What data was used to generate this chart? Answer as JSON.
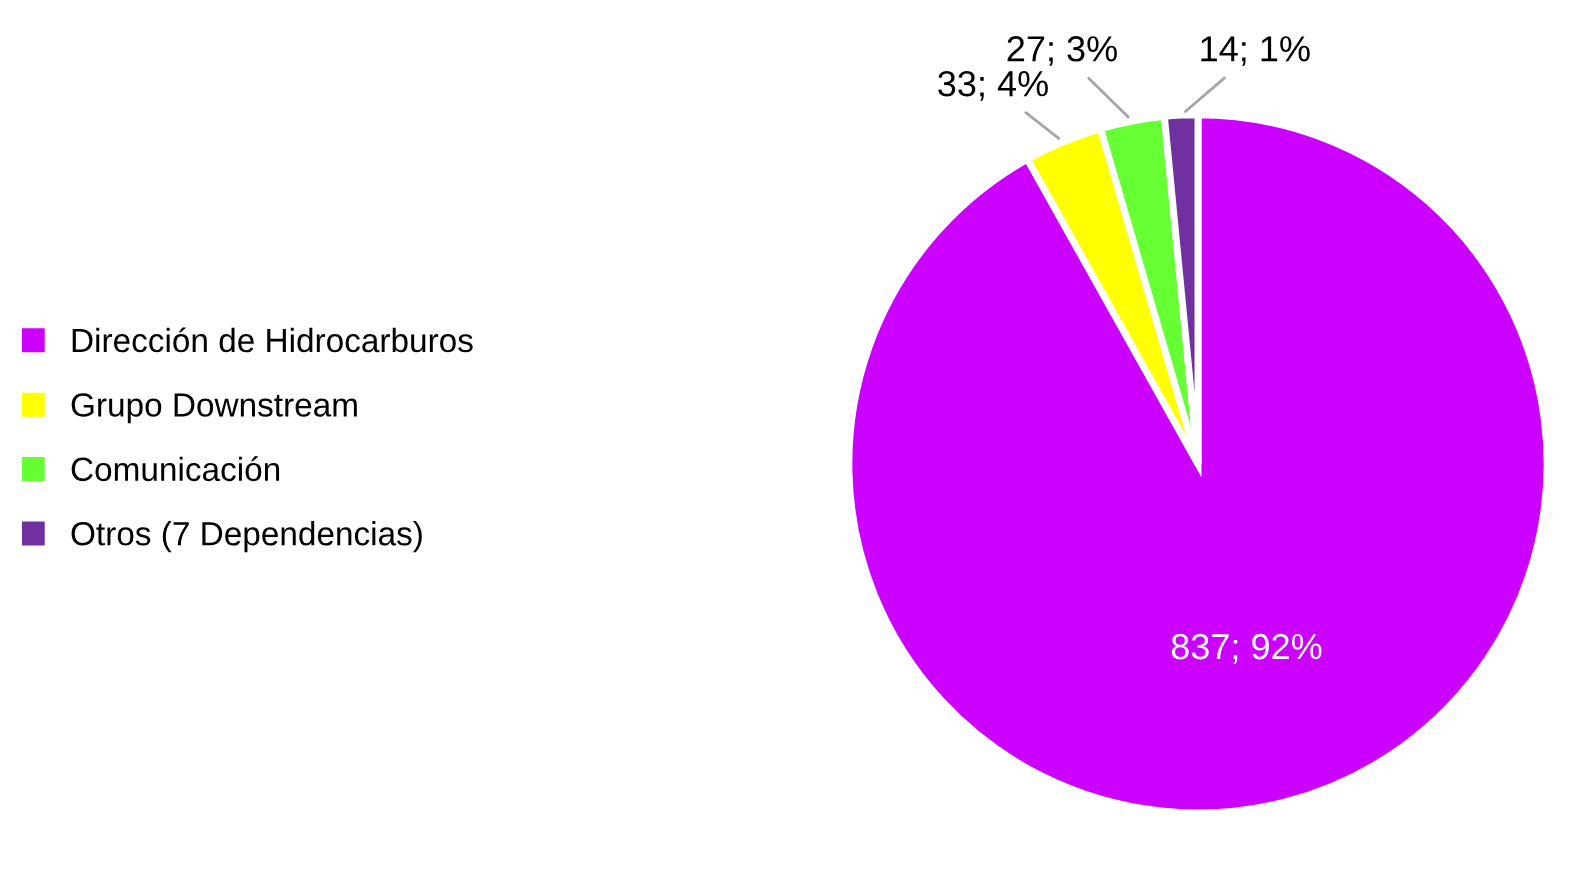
{
  "chart_data": {
    "type": "pie",
    "categories": [
      "Dirección de Hidrocarburos",
      "Grupo Downstream",
      "Comunicación",
      "Otros (7 Dependencias)"
    ],
    "values": [
      837,
      33,
      27,
      14
    ],
    "colors": [
      "#cc00ff",
      "#ffff00",
      "#66ff33",
      "#7030a0"
    ],
    "value_labels": [
      "837; 92%",
      "33; 4%",
      "27; 3%",
      "14; 1%"
    ],
    "legend": "left"
  }
}
